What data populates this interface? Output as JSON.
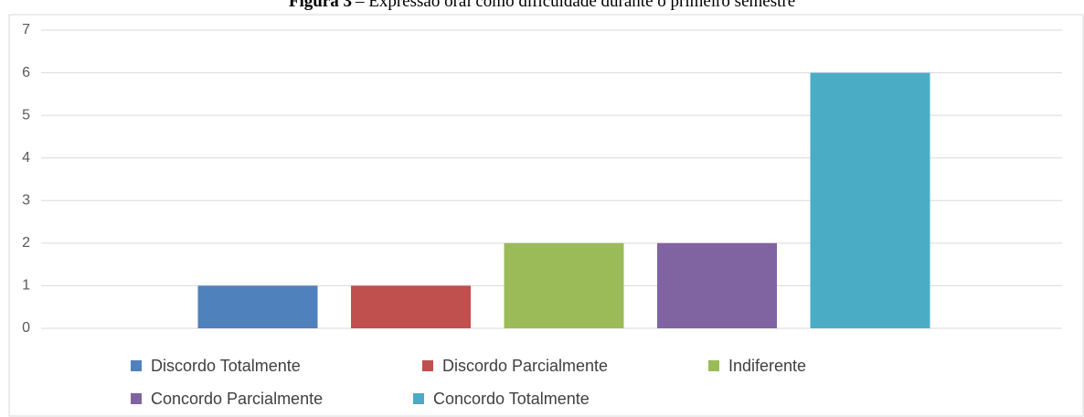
{
  "chart_data": {
    "type": "bar",
    "figure_label": "Figura 3",
    "title": "– Expressão oral como dificuldade durante o primeiro semestre",
    "categories": [
      null
    ],
    "series": [
      {
        "name": "Discordo Totalmente",
        "color": "#4f81bd",
        "values": [
          1
        ]
      },
      {
        "name": "Discordo Parcialmente",
        "color": "#c0504d",
        "values": [
          1
        ]
      },
      {
        "name": "Indiferente",
        "color": "#9bbb59",
        "values": [
          2
        ]
      },
      {
        "name": "Concordo Parcialmente",
        "color": "#8064a2",
        "values": [
          2
        ]
      },
      {
        "name": "Concordo Totalmente",
        "color": "#4bacc6",
        "values": [
          6
        ]
      }
    ],
    "ylim": [
      0,
      7
    ],
    "yticks": [
      0,
      1,
      2,
      3,
      4,
      5,
      6,
      7
    ],
    "grid": true,
    "legend": "bottom"
  }
}
